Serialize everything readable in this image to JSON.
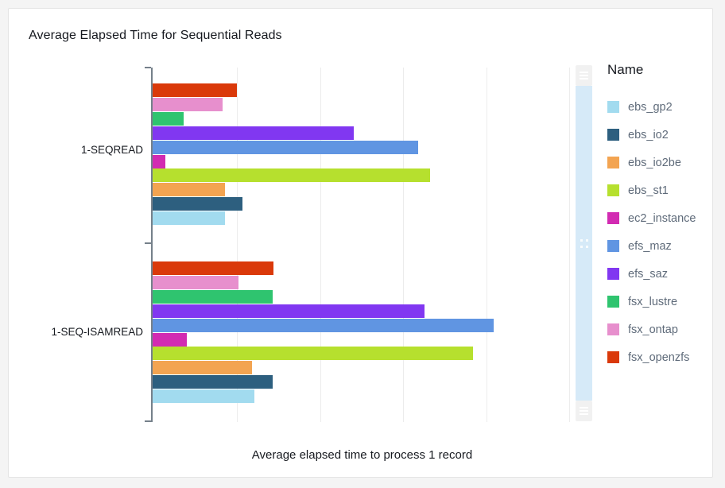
{
  "card": {
    "title": "Average Elapsed Time for Sequential Reads"
  },
  "chart_data": {
    "type": "bar",
    "orientation": "horizontal",
    "title": "Average Elapsed Time for Sequential Reads",
    "xlabel": "Average elapsed time to process 1 record",
    "ylabel": "",
    "categories": [
      "1-SEQREAD",
      "1-SEQ-ISAMREAD"
    ],
    "legend": {
      "title": "Name",
      "position": "right"
    },
    "x_axis": {
      "tick_labels_shown": false,
      "gridline_count": 5,
      "xlim": [
        0,
        5.08
      ],
      "units": "relative (gridline spacing = 1 unit, no numeric labels rendered)"
    },
    "bar_order_note": "within each category bars are drawn top-to-bottom in reverse legend order (fsx_openzfs at top, ebs_gp2 at bottom)",
    "series": [
      {
        "name": "ebs_gp2",
        "color": "#a2dbef",
        "values": [
          0.87,
          1.22
        ]
      },
      {
        "name": "ebs_io2",
        "color": "#2d5f7f",
        "values": [
          1.08,
          1.44
        ]
      },
      {
        "name": "ebs_io2be",
        "color": "#f3a451",
        "values": [
          0.87,
          1.2
        ]
      },
      {
        "name": "ebs_st1",
        "color": "#b6e02e",
        "values": [
          3.34,
          3.86
        ]
      },
      {
        "name": "ec2_instance",
        "color": "#d22bb2",
        "values": [
          0.15,
          0.41
        ]
      },
      {
        "name": "efs_maz",
        "color": "#6095e2",
        "values": [
          3.2,
          4.1
        ]
      },
      {
        "name": "efs_saz",
        "color": "#8137f1",
        "values": [
          2.42,
          3.27
        ]
      },
      {
        "name": "fsx_lustre",
        "color": "#2fc46f",
        "values": [
          0.37,
          1.44
        ]
      },
      {
        "name": "fsx_ontap",
        "color": "#e78fcd",
        "values": [
          0.84,
          1.03
        ]
      },
      {
        "name": "fsx_openzfs",
        "color": "#da390a",
        "values": [
          1.01,
          1.45
        ]
      }
    ],
    "style": {
      "axis_color": "#75808a",
      "gridline_color": "#ececec",
      "scrollbar_track_color": "#d6eaf8",
      "scrollbar_handle_color": "#f1f1f1",
      "background_color": "#ffffff",
      "page_background_color": "#f4f4f4"
    }
  }
}
